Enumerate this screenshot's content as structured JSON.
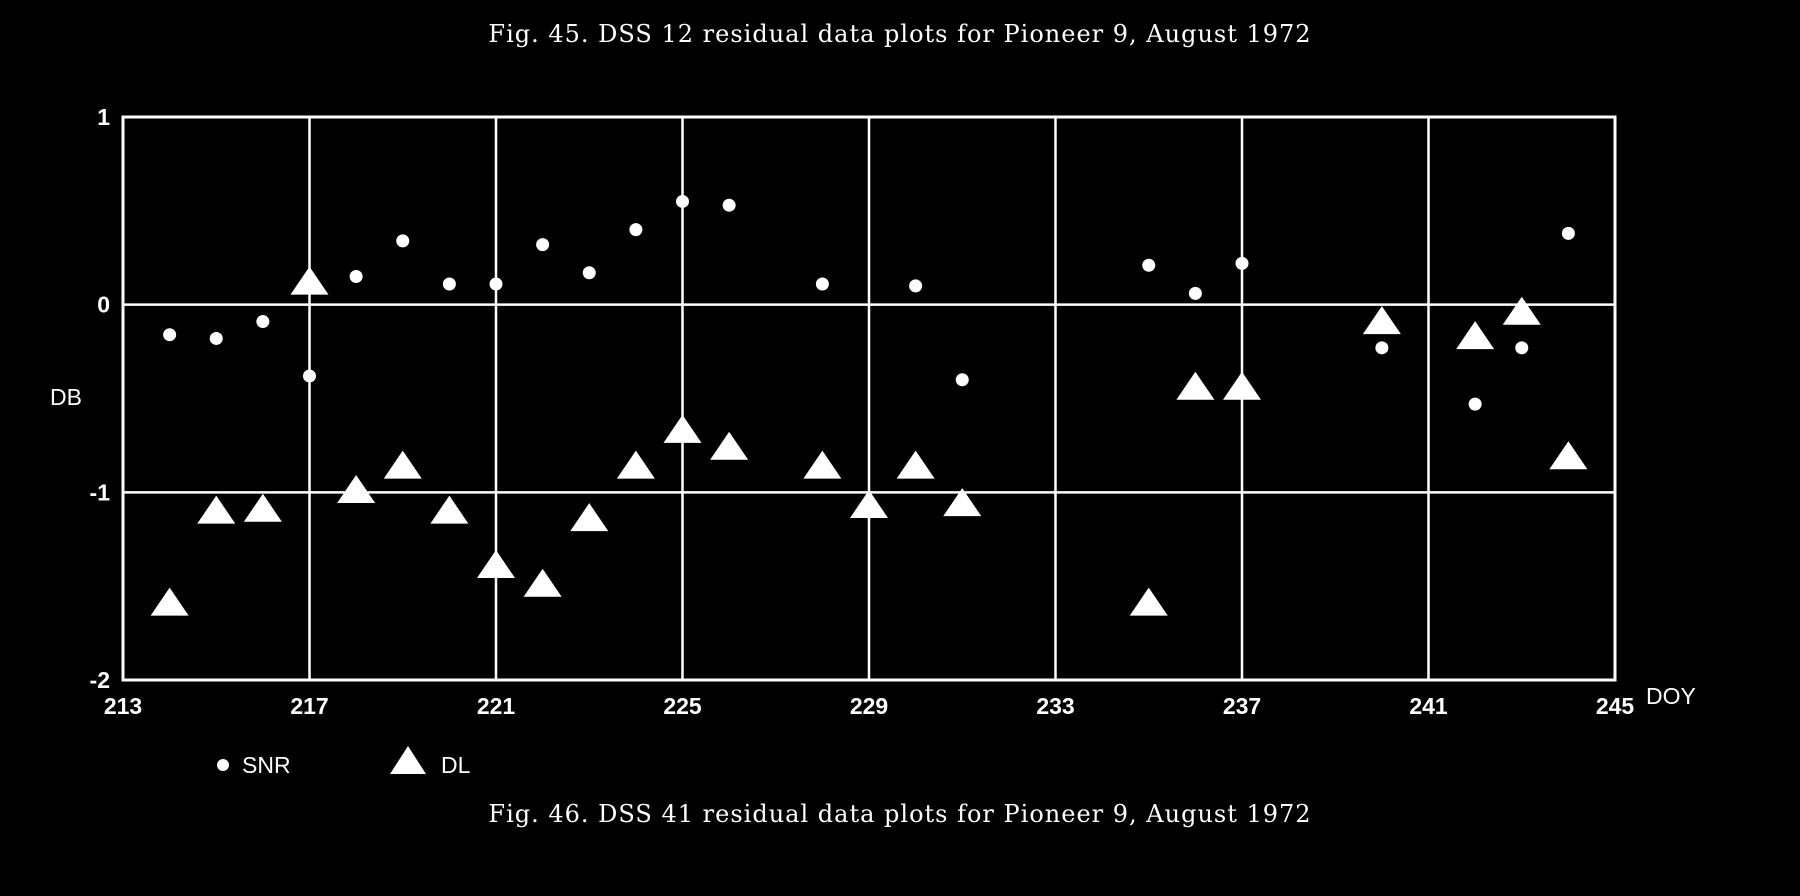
{
  "captions": {
    "top": "Fig. 45.  DSS 12 residual data plots for Pioneer 9, August 1972",
    "bottom": "Fig. 46.  DSS 41 residual data plots for Pioneer 9, August 1972"
  },
  "chart_data": {
    "type": "scatter",
    "title": "",
    "xlabel": "DOY",
    "ylabel": "DB",
    "xlim": [
      213,
      245
    ],
    "ylim": [
      -2,
      1
    ],
    "x_ticks": [
      213,
      217,
      221,
      225,
      229,
      233,
      237,
      241,
      245
    ],
    "y_ticks": [
      1,
      0,
      -1,
      -2
    ],
    "y_tick_labels": [
      "1",
      "0",
      "-1",
      "-2"
    ],
    "grid": true,
    "legend_position": "bottom-left",
    "series": [
      {
        "name": "SNR",
        "marker": "circle",
        "color": "#ffffff",
        "points": [
          [
            214,
            -0.16
          ],
          [
            215,
            -0.18
          ],
          [
            216,
            -0.09
          ],
          [
            217,
            -0.38
          ],
          [
            218,
            0.15
          ],
          [
            219,
            0.34
          ],
          [
            220,
            0.11
          ],
          [
            221,
            0.11
          ],
          [
            222,
            0.32
          ],
          [
            223,
            0.17
          ],
          [
            224,
            0.4
          ],
          [
            225,
            0.55
          ],
          [
            226,
            0.53
          ],
          [
            228,
            0.11
          ],
          [
            230,
            0.1
          ],
          [
            231,
            -0.4
          ],
          [
            235,
            0.21
          ],
          [
            236,
            0.06
          ],
          [
            237,
            0.22
          ],
          [
            240,
            -0.23
          ],
          [
            242,
            -0.53
          ],
          [
            243,
            -0.23
          ],
          [
            244,
            0.38
          ]
        ]
      },
      {
        "name": "DL",
        "marker": "triangle",
        "color": "#ffffff",
        "points": [
          [
            214,
            -1.6
          ],
          [
            215,
            -1.11
          ],
          [
            216,
            -1.1
          ],
          [
            217,
            0.11
          ],
          [
            218,
            -1.0
          ],
          [
            219,
            -0.87
          ],
          [
            220,
            -1.11
          ],
          [
            221,
            -1.4
          ],
          [
            222,
            -1.5
          ],
          [
            223,
            -1.15
          ],
          [
            224,
            -0.87
          ],
          [
            225,
            -0.68
          ],
          [
            226,
            -0.77
          ],
          [
            228,
            -0.87
          ],
          [
            229,
            -1.08
          ],
          [
            230,
            -0.87
          ],
          [
            231,
            -1.07
          ],
          [
            235,
            -1.6
          ],
          [
            236,
            -0.45
          ],
          [
            237,
            -0.45
          ],
          [
            240,
            -0.1
          ],
          [
            242,
            -0.18
          ],
          [
            243,
            -0.05
          ],
          [
            244,
            -0.82
          ]
        ]
      }
    ]
  }
}
